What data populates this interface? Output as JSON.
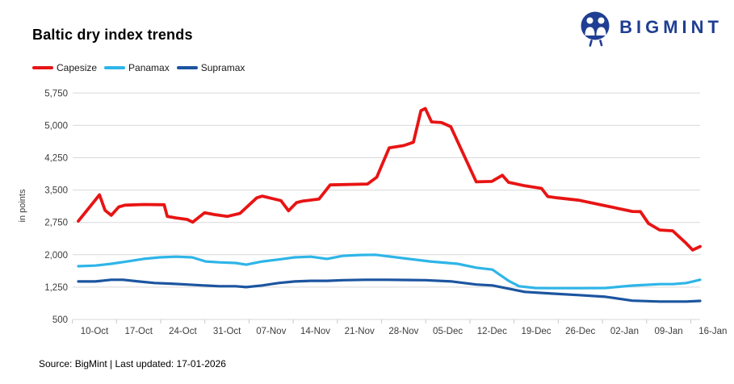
{
  "header": {
    "title": "Baltic dry index trends",
    "brand": "BIGMINT",
    "brand_color": "#203e93"
  },
  "chart_data": {
    "type": "line",
    "title": "Baltic dry index trends",
    "xlabel": "",
    "ylabel": "in points",
    "ymin": 500,
    "ymax": 5750,
    "grid": "horizontal",
    "legend_position": "top-left",
    "x_note": "x = day offset 0-100 across the axis span (weekly labels 10-Oct to 16-Jan)",
    "yticks": [
      {
        "v": 500,
        "label": "500"
      },
      {
        "v": 1250,
        "label": "1,250"
      },
      {
        "v": 2000,
        "label": "2,000"
      },
      {
        "v": 2750,
        "label": "2,750"
      },
      {
        "v": 3500,
        "label": "3,500"
      },
      {
        "v": 4250,
        "label": "4,250"
      },
      {
        "v": 5000,
        "label": "5,000"
      },
      {
        "v": 5750,
        "label": "5,750"
      }
    ],
    "categories": [
      "10-Oct",
      "17-Oct",
      "24-Oct",
      "31-Oct",
      "07-Nov",
      "14-Nov",
      "21-Nov",
      "28-Nov",
      "05-Dec",
      "12-Dec",
      "19-Dec",
      "26-Dec",
      "02-Jan",
      "09-Jan",
      "16-Jan"
    ],
    "series": [
      {
        "name": "Capesize",
        "color": "#e81414",
        "width": 3.8,
        "points": [
          [
            0,
            2780
          ],
          [
            3.4,
            3390
          ],
          [
            4.3,
            3030
          ],
          [
            5.3,
            2915
          ],
          [
            6.5,
            3110
          ],
          [
            7.5,
            3150
          ],
          [
            10.5,
            3165
          ],
          [
            13.8,
            3160
          ],
          [
            14.3,
            2890
          ],
          [
            15.7,
            2855
          ],
          [
            17.5,
            2820
          ],
          [
            18.4,
            2755
          ],
          [
            20.3,
            2975
          ],
          [
            22,
            2930
          ],
          [
            24,
            2890
          ],
          [
            26,
            2960
          ],
          [
            28.7,
            3320
          ],
          [
            29.6,
            3360
          ],
          [
            31.3,
            3300
          ],
          [
            32.6,
            3255
          ],
          [
            33.8,
            3020
          ],
          [
            35.1,
            3210
          ],
          [
            36.1,
            3245
          ],
          [
            38.7,
            3290
          ],
          [
            40.5,
            3620
          ],
          [
            46.5,
            3640
          ],
          [
            48,
            3800
          ],
          [
            50,
            4480
          ],
          [
            52.3,
            4530
          ],
          [
            53.9,
            4610
          ],
          [
            55.1,
            5340
          ],
          [
            55.8,
            5390
          ],
          [
            56.8,
            5080
          ],
          [
            58.4,
            5065
          ],
          [
            59.9,
            4970
          ],
          [
            64,
            3690
          ],
          [
            66.5,
            3700
          ],
          [
            68.2,
            3845
          ],
          [
            69.2,
            3680
          ],
          [
            71.8,
            3600
          ],
          [
            74.5,
            3540
          ],
          [
            75.5,
            3350
          ],
          [
            77,
            3320
          ],
          [
            80.5,
            3265
          ],
          [
            84.8,
            3135
          ],
          [
            89.1,
            3005
          ],
          [
            90.4,
            3000
          ],
          [
            91.7,
            2725
          ],
          [
            93.5,
            2575
          ],
          [
            95.6,
            2555
          ],
          [
            97.8,
            2260
          ],
          [
            98.8,
            2110
          ],
          [
            100,
            2190
          ]
        ]
      },
      {
        "name": "Panamax",
        "color": "#2eb5e8",
        "width": 3.2,
        "points": [
          [
            0,
            1735
          ],
          [
            2.7,
            1750
          ],
          [
            5.3,
            1790
          ],
          [
            7.9,
            1845
          ],
          [
            10.5,
            1905
          ],
          [
            13.1,
            1940
          ],
          [
            15.7,
            1955
          ],
          [
            18.3,
            1940
          ],
          [
            20.5,
            1845
          ],
          [
            22.7,
            1825
          ],
          [
            25.3,
            1810
          ],
          [
            27,
            1770
          ],
          [
            29.6,
            1845
          ],
          [
            32.2,
            1890
          ],
          [
            34.8,
            1940
          ],
          [
            37.4,
            1955
          ],
          [
            40,
            1905
          ],
          [
            42.6,
            1975
          ],
          [
            45.2,
            1995
          ],
          [
            47.8,
            2000
          ],
          [
            52.3,
            1920
          ],
          [
            56.6,
            1845
          ],
          [
            61,
            1790
          ],
          [
            64,
            1700
          ],
          [
            66.6,
            1655
          ],
          [
            69.2,
            1395
          ],
          [
            70.9,
            1270
          ],
          [
            73.5,
            1230
          ],
          [
            76.1,
            1225
          ],
          [
            80.5,
            1225
          ],
          [
            84.8,
            1230
          ],
          [
            89.1,
            1285
          ],
          [
            93.5,
            1320
          ],
          [
            95.6,
            1320
          ],
          [
            97.8,
            1345
          ],
          [
            100,
            1420
          ]
        ]
      },
      {
        "name": "Supramax",
        "color": "#1c55a0",
        "width": 3.2,
        "points": [
          [
            0,
            1380
          ],
          [
            2.7,
            1380
          ],
          [
            5.3,
            1420
          ],
          [
            7.2,
            1420
          ],
          [
            9.7,
            1380
          ],
          [
            12.3,
            1345
          ],
          [
            14.9,
            1330
          ],
          [
            17.5,
            1310
          ],
          [
            20.1,
            1290
          ],
          [
            22.7,
            1270
          ],
          [
            25.3,
            1270
          ],
          [
            27,
            1250
          ],
          [
            29.6,
            1290
          ],
          [
            32.2,
            1345
          ],
          [
            34.8,
            1380
          ],
          [
            37.4,
            1395
          ],
          [
            40,
            1395
          ],
          [
            42.6,
            1410
          ],
          [
            46.1,
            1420
          ],
          [
            49.7,
            1420
          ],
          [
            55.8,
            1410
          ],
          [
            60.1,
            1380
          ],
          [
            64,
            1310
          ],
          [
            66.6,
            1290
          ],
          [
            69.2,
            1215
          ],
          [
            71.8,
            1140
          ],
          [
            76.1,
            1100
          ],
          [
            80.5,
            1065
          ],
          [
            84.8,
            1025
          ],
          [
            89.1,
            935
          ],
          [
            93.5,
            915
          ],
          [
            97.8,
            915
          ],
          [
            100,
            930
          ]
        ]
      }
    ]
  },
  "footer": {
    "text": "Source: BigMint | Last updated: 17-01-2026"
  }
}
